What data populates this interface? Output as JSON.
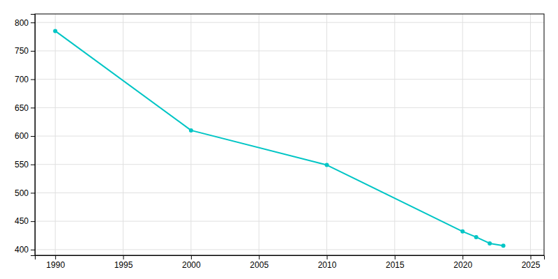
{
  "chart_data": {
    "type": "line",
    "x": [
      1990,
      2000,
      2010,
      2020,
      2021,
      2022,
      2023
    ],
    "values": [
      785,
      610,
      549,
      432,
      422,
      411,
      407
    ],
    "color": "#00C5C5",
    "marker": "circle",
    "xlim": [
      1988.5,
      2026
    ],
    "ylim": [
      390,
      815
    ],
    "xticks": [
      1990,
      1995,
      2000,
      2005,
      2010,
      2015,
      2020,
      2025
    ],
    "yticks": [
      400,
      450,
      500,
      550,
      600,
      650,
      700,
      750,
      800
    ],
    "grid": true
  }
}
